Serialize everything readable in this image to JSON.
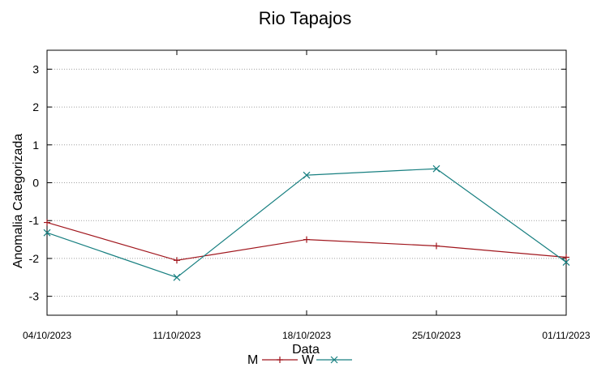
{
  "chart_data": {
    "type": "line",
    "title": "Rio Tapajos",
    "xlabel": "Data",
    "ylabel": "Anomalia Categorizada",
    "x": [
      "04/10/2023",
      "11/10/2023",
      "18/10/2023",
      "25/10/2023",
      "01/11/2023"
    ],
    "ylim": [
      -3.5,
      3.5
    ],
    "yticks": [
      -3,
      -2,
      -1,
      0,
      1,
      2,
      3
    ],
    "grid": true,
    "legend_position": "bottom-center",
    "series": [
      {
        "name": "M",
        "color": "#a0151c",
        "marker": "plus",
        "values": [
          -1.05,
          -2.05,
          -1.5,
          -1.67,
          -1.97
        ]
      },
      {
        "name": "W",
        "color": "#177f80",
        "marker": "x",
        "values": [
          -1.32,
          -2.5,
          0.2,
          0.37,
          -2.1
        ]
      }
    ]
  }
}
